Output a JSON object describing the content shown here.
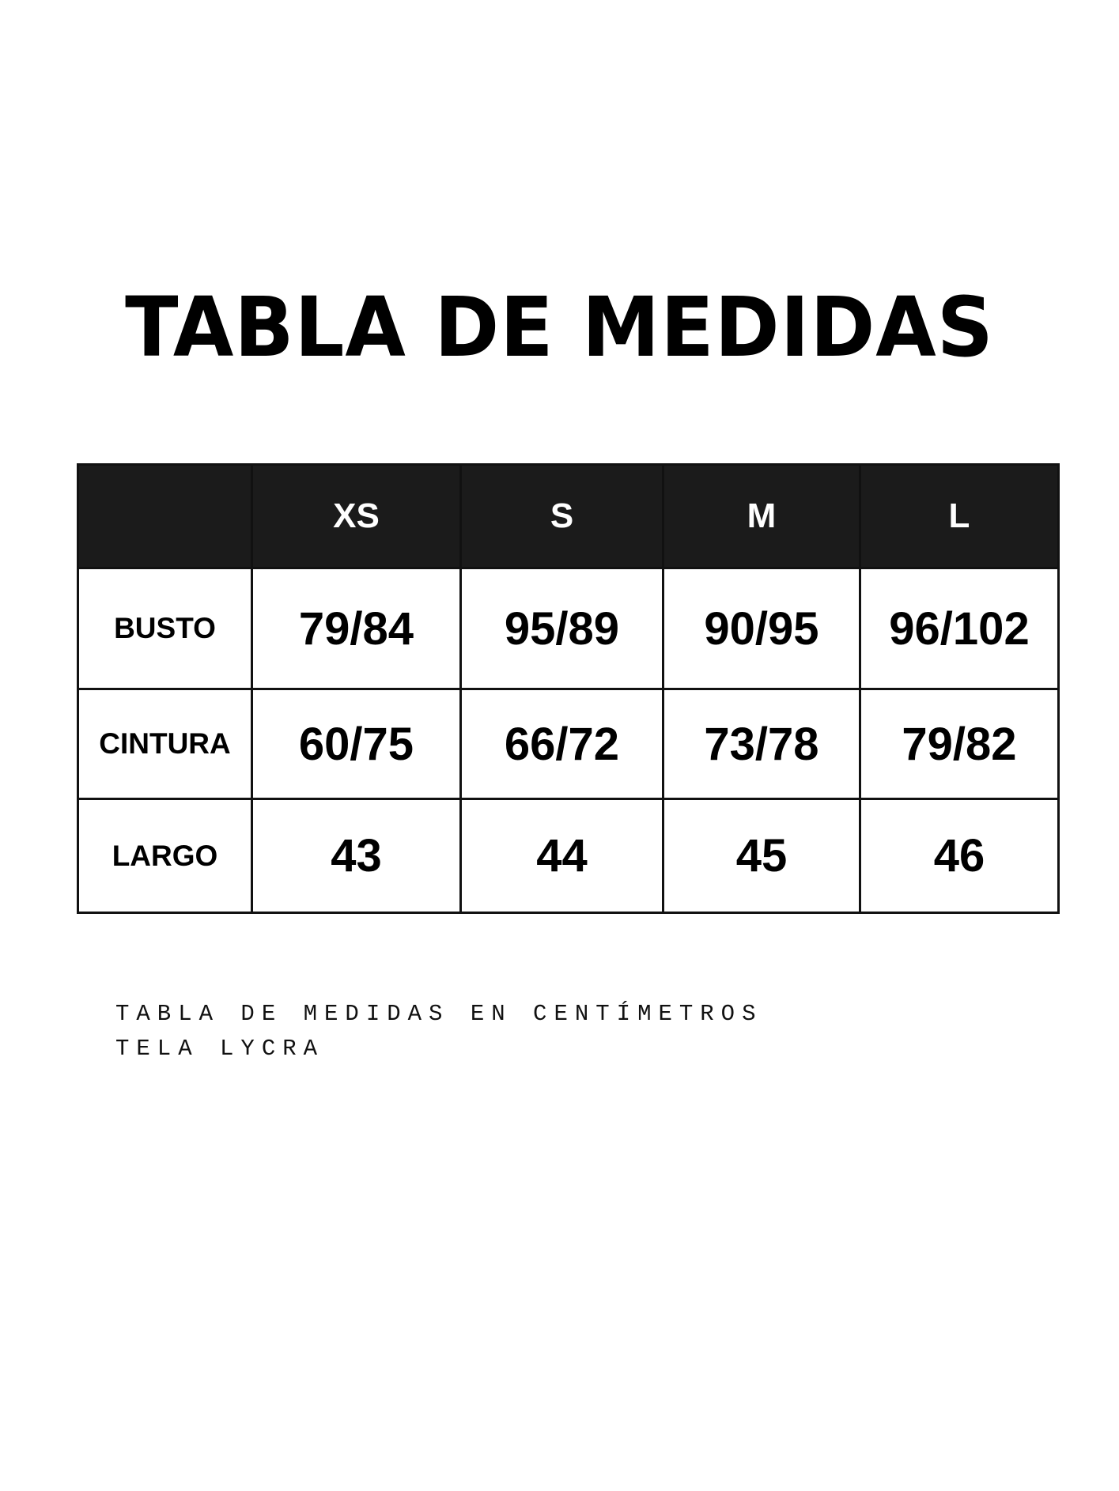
{
  "title": "TABLA DE MEDIDAS",
  "table": {
    "header_bg": "#1b1b1b",
    "columns": [
      "",
      "XS",
      "S",
      "M",
      "L"
    ],
    "rows": [
      {
        "label": "BUSTO",
        "values": [
          "79/84",
          "95/89",
          "90/95",
          "96/102"
        ]
      },
      {
        "label": "CINTURA",
        "values": [
          "60/75",
          "66/72",
          "73/78",
          "79/82"
        ]
      },
      {
        "label": "LARGO",
        "values": [
          "43",
          "44",
          "45",
          "46"
        ]
      }
    ]
  },
  "notes": [
    "TABLA DE MEDIDAS EN CENTÍMETROS",
    "TELA LYCRA"
  ]
}
